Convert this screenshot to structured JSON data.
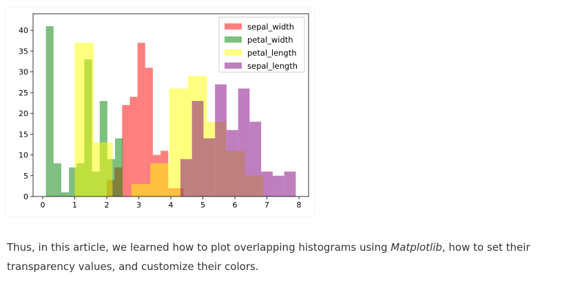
{
  "chart_data": {
    "type": "histogram",
    "title": "",
    "xlabel": "",
    "ylabel": "",
    "xlim": [
      -0.3,
      8.3
    ],
    "ylim": [
      0,
      44
    ],
    "xticks": [
      0,
      1,
      2,
      3,
      4,
      5,
      6,
      7,
      8
    ],
    "yticks": [
      0,
      5,
      10,
      15,
      20,
      25,
      30,
      35,
      40
    ],
    "legend": "top-right",
    "grid": false,
    "opacity": 0.5,
    "series": [
      {
        "name": "sepal_width",
        "color": "#ff0000",
        "bins": [
          2.0,
          2.24,
          2.48,
          2.72,
          2.96,
          3.2,
          3.44,
          3.68,
          3.92,
          4.16,
          4.4
        ],
        "counts": [
          4,
          7,
          22,
          24,
          37,
          31,
          10,
          11,
          2,
          2
        ]
      },
      {
        "name": "petal_width",
        "color": "#008000",
        "bins": [
          0.1,
          0.34,
          0.58,
          0.82,
          1.06,
          1.3,
          1.54,
          1.78,
          2.02,
          2.26,
          2.5
        ],
        "counts": [
          41,
          8,
          1,
          7,
          8,
          33,
          6,
          23,
          9,
          14
        ]
      },
      {
        "name": "petal_length",
        "color": "#ffff00",
        "bins": [
          1.0,
          1.59,
          2.18,
          2.77,
          3.36,
          3.95,
          4.54,
          5.13,
          5.72,
          6.31,
          6.9
        ],
        "counts": [
          37,
          13,
          0,
          3,
          8,
          26,
          29,
          18,
          11,
          5
        ]
      },
      {
        "name": "sepal_length",
        "color": "#800080",
        "bins": [
          4.3,
          4.66,
          5.02,
          5.38,
          5.74,
          6.1,
          6.46,
          6.82,
          7.18,
          7.54,
          7.9
        ],
        "counts": [
          9,
          23,
          14,
          27,
          16,
          26,
          18,
          6,
          5,
          6
        ]
      }
    ]
  },
  "article": {
    "line1_before": "Thus, in this article, we learned how to plot overlapping histograms using ",
    "line1_em": "Matplotlib",
    "line1_after": ", how to set their",
    "line2": "transparency values, and customize their colors."
  }
}
